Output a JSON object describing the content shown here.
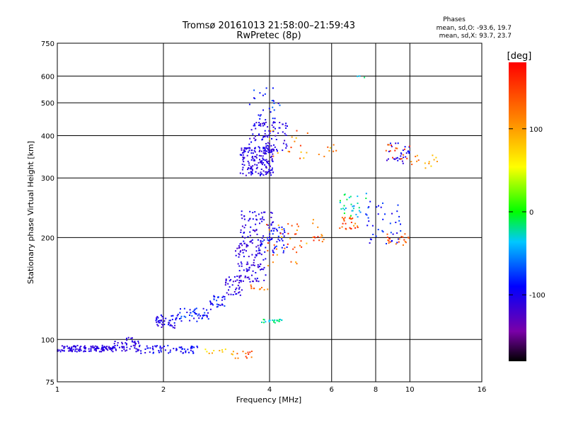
{
  "chart_data": {
    "type": "scatter",
    "title": "Tromsø 20161013 21:58:00–21:59:43",
    "subtitle": "RwPretec (8p)",
    "xlabel": "Frequency [MHz]",
    "ylabel": "Stationary phase Virtual Height [km]",
    "xscale": "log",
    "yscale": "log",
    "xlim": [
      1,
      16
    ],
    "ylim": [
      75,
      750
    ],
    "xticks": [
      1,
      2,
      4,
      6,
      8,
      10,
      16
    ],
    "yticks": [
      75,
      100,
      200,
      300,
      400,
      500,
      600,
      750
    ],
    "grid": true,
    "stats": {
      "heading": "Phases",
      "line_o": "mean, sd,O: -93.6, 19.7",
      "line_x": "mean, sd,X:  93.7, 23.7"
    },
    "colorbar": {
      "label": "[deg]",
      "min": -180,
      "max": 180,
      "ticks": [
        100,
        0,
        -100
      ],
      "placement": "right"
    },
    "clusters": [
      {
        "f": [
          1.0,
          1.45
        ],
        "h": [
          92,
          96
        ],
        "n": 130,
        "ph": [
          -118,
          -98
        ]
      },
      {
        "f": [
          1.45,
          1.72
        ],
        "h": [
          92,
          99
        ],
        "n": 40,
        "ph": [
          -120,
          -95
        ]
      },
      {
        "f": [
          1.52,
          1.7
        ],
        "h": [
          96,
          102
        ],
        "n": 10,
        "ph": [
          -115,
          -100
        ]
      },
      {
        "f": [
          1.72,
          2.5
        ],
        "h": [
          91,
          96
        ],
        "n": 60,
        "ph": [
          -115,
          -80
        ]
      },
      {
        "f": [
          2.6,
          3.2
        ],
        "h": [
          90,
          94
        ],
        "n": 12,
        "ph": [
          60,
          130
        ]
      },
      {
        "f": [
          3.2,
          3.7
        ],
        "h": [
          88,
          93
        ],
        "n": 12,
        "ph": [
          110,
          170
        ]
      },
      {
        "f": [
          1.9,
          2.2
        ],
        "h": [
          108,
          118
        ],
        "n": 45,
        "ph": [
          -120,
          -85
        ]
      },
      {
        "f": [
          2.2,
          2.7
        ],
        "h": [
          113,
          124
        ],
        "n": 45,
        "ph": [
          -110,
          -60
        ]
      },
      {
        "f": [
          2.7,
          3.0
        ],
        "h": [
          122,
          135
        ],
        "n": 30,
        "ph": [
          -110,
          -70
        ]
      },
      {
        "f": [
          3.0,
          3.35
        ],
        "h": [
          135,
          155
        ],
        "n": 35,
        "ph": [
          -125,
          -95
        ]
      },
      {
        "f": [
          3.2,
          3.9
        ],
        "h": [
          148,
          195
        ],
        "n": 110,
        "ph": [
          -125,
          -95
        ]
      },
      {
        "f": [
          3.3,
          4.1
        ],
        "h": [
          195,
          240
        ],
        "n": 70,
        "ph": [
          -120,
          -90
        ]
      },
      {
        "f": [
          3.7,
          4.5
        ],
        "h": [
          180,
          215
        ],
        "n": 45,
        "ph": [
          -110,
          -70
        ]
      },
      {
        "f": [
          3.8,
          4.4
        ],
        "h": [
          112,
          115
        ],
        "n": 22,
        "ph": [
          -40,
          -5
        ]
      },
      {
        "f": [
          3.5,
          4.0
        ],
        "h": [
          140,
          146
        ],
        "n": 10,
        "ph": [
          100,
          150
        ]
      },
      {
        "f": [
          3.9,
          5.1
        ],
        "h": [
          165,
          220
        ],
        "n": 35,
        "ph": [
          80,
          170
        ]
      },
      {
        "f": [
          3.3,
          4.1
        ],
        "h": [
          305,
          370
        ],
        "n": 170,
        "ph": [
          -120,
          -95
        ]
      },
      {
        "f": [
          3.5,
          4.5
        ],
        "h": [
          360,
          440
        ],
        "n": 90,
        "ph": [
          -120,
          -90
        ]
      },
      {
        "f": [
          3.5,
          4.3
        ],
        "h": [
          440,
          560
        ],
        "n": 28,
        "ph": [
          -110,
          -60
        ]
      },
      {
        "f": [
          4.0,
          5.2
        ],
        "h": [
          340,
          420
        ],
        "n": 18,
        "ph": [
          70,
          160
        ]
      },
      {
        "f": [
          5.3,
          5.7
        ],
        "h": [
          190,
          230
        ],
        "n": 14,
        "ph": [
          100,
          170
        ]
      },
      {
        "f": [
          6.3,
          7.2
        ],
        "h": [
          210,
          230
        ],
        "n": 25,
        "ph": [
          100,
          170
        ]
      },
      {
        "f": [
          6.3,
          7.7
        ],
        "h": [
          230,
          270
        ],
        "n": 30,
        "ph": [
          -60,
          0
        ]
      },
      {
        "f": [
          7.5,
          9.5
        ],
        "h": [
          190,
          260
        ],
        "n": 40,
        "ph": [
          -110,
          -70
        ]
      },
      {
        "f": [
          8.5,
          10.0
        ],
        "h": [
          190,
          205
        ],
        "n": 20,
        "ph": [
          110,
          160
        ]
      },
      {
        "f": [
          8.5,
          10.0
        ],
        "h": [
          330,
          380
        ],
        "n": 30,
        "ph": [
          -120,
          -80
        ]
      },
      {
        "f": [
          8.5,
          10.0
        ],
        "h": [
          340,
          380
        ],
        "n": 15,
        "ph": [
          110,
          170
        ]
      },
      {
        "f": [
          10.0,
          12.0
        ],
        "h": [
          320,
          350
        ],
        "n": 15,
        "ph": [
          70,
          150
        ]
      },
      {
        "f": [
          5.5,
          6.5
        ],
        "h": [
          340,
          380
        ],
        "n": 8,
        "ph": [
          60,
          150
        ]
      },
      {
        "f": [
          7.0,
          7.5
        ],
        "h": [
          590,
          600
        ],
        "n": 3,
        "ph": [
          -40,
          0
        ]
      }
    ]
  }
}
